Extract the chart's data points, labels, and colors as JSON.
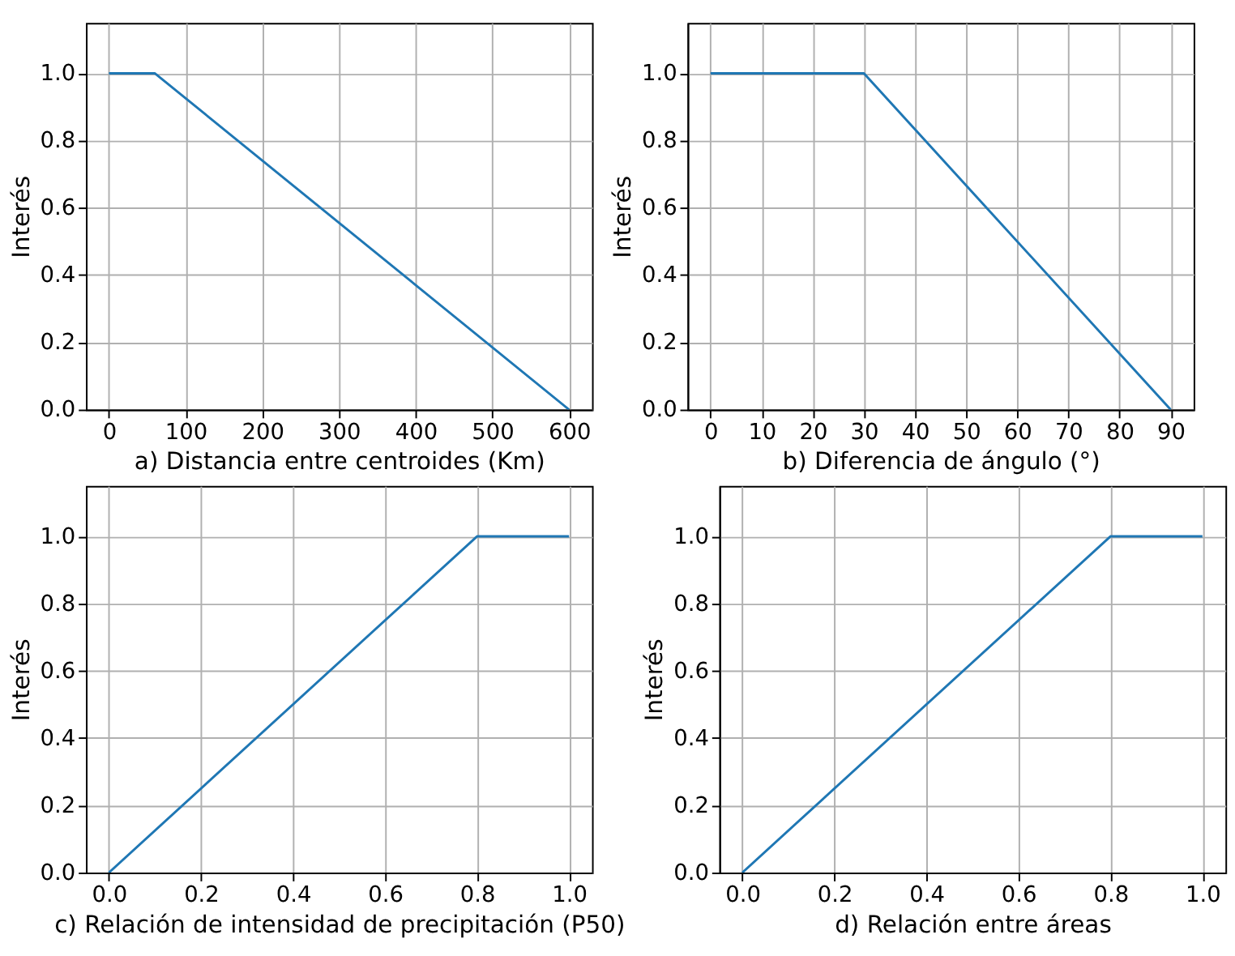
{
  "chart_data": [
    {
      "type": "line",
      "x": [
        0,
        60,
        600
      ],
      "values": [
        1,
        1,
        0
      ],
      "color": "#1f77b4",
      "xlabel": "a) Distancia entre centroides (Km)",
      "ylabel": "Interés",
      "xlim": [
        -30,
        630
      ],
      "ylim": [
        0,
        1.15
      ],
      "xticks": [
        0,
        100,
        200,
        300,
        400,
        500,
        600
      ],
      "yticks": [
        {
          "value": 0,
          "label": "0.0"
        },
        {
          "value": 0.2,
          "label": "0.2"
        },
        {
          "value": 0.4,
          "label": "0.4"
        },
        {
          "value": 0.6,
          "label": "0.6"
        },
        {
          "value": 0.8,
          "label": "0.8"
        },
        {
          "value": 1,
          "label": "1.0"
        }
      ],
      "grid": true
    },
    {
      "type": "line",
      "x": [
        0,
        30,
        90
      ],
      "values": [
        1,
        1,
        0
      ],
      "color": "#1f77b4",
      "xlabel": "b) Diferencia de ángulo (°)",
      "ylabel": "Interés",
      "xlim": [
        -4.5,
        94.5
      ],
      "ylim": [
        0,
        1.15
      ],
      "xticks": [
        0,
        10,
        20,
        30,
        40,
        50,
        60,
        70,
        80,
        90
      ],
      "yticks": [
        {
          "value": 0,
          "label": "0.0"
        },
        {
          "value": 0.2,
          "label": "0.2"
        },
        {
          "value": 0.4,
          "label": "0.4"
        },
        {
          "value": 0.6,
          "label": "0.6"
        },
        {
          "value": 0.8,
          "label": "0.8"
        },
        {
          "value": 1,
          "label": "1.0"
        }
      ],
      "grid": true
    },
    {
      "type": "line",
      "x": [
        0,
        0.8,
        1
      ],
      "values": [
        0,
        1,
        1
      ],
      "color": "#1f77b4",
      "xlabel": "c) Relación de intensidad de precipitación (P50)",
      "ylabel": "Interés",
      "xlim": [
        -0.05,
        1.05
      ],
      "ylim": [
        0,
        1.15
      ],
      "xticks": [
        {
          "value": 0,
          "label": "0.0"
        },
        {
          "value": 0.2,
          "label": "0.2"
        },
        {
          "value": 0.4,
          "label": "0.4"
        },
        {
          "value": 0.6,
          "label": "0.6"
        },
        {
          "value": 0.8,
          "label": "0.8"
        },
        {
          "value": 1,
          "label": "1.0"
        }
      ],
      "yticks": [
        {
          "value": 0,
          "label": "0.0"
        },
        {
          "value": 0.2,
          "label": "0.2"
        },
        {
          "value": 0.4,
          "label": "0.4"
        },
        {
          "value": 0.6,
          "label": "0.6"
        },
        {
          "value": 0.8,
          "label": "0.8"
        },
        {
          "value": 1,
          "label": "1.0"
        }
      ],
      "grid": true
    },
    {
      "type": "line",
      "x": [
        0,
        0.8,
        1
      ],
      "values": [
        0,
        1,
        1
      ],
      "color": "#1f77b4",
      "xlabel": "d) Relación entre áreas",
      "ylabel": "Interés",
      "xlim": [
        -0.05,
        1.05
      ],
      "ylim": [
        0,
        1.15
      ],
      "xticks": [
        {
          "value": 0,
          "label": "0.0"
        },
        {
          "value": 0.2,
          "label": "0.2"
        },
        {
          "value": 0.4,
          "label": "0.4"
        },
        {
          "value": 0.6,
          "label": "0.6"
        },
        {
          "value": 0.8,
          "label": "0.8"
        },
        {
          "value": 1,
          "label": "1.0"
        }
      ],
      "yticks": [
        {
          "value": 0,
          "label": "0.0"
        },
        {
          "value": 0.2,
          "label": "0.2"
        },
        {
          "value": 0.4,
          "label": "0.4"
        },
        {
          "value": 0.6,
          "label": "0.6"
        },
        {
          "value": 0.8,
          "label": "0.8"
        },
        {
          "value": 1,
          "label": "1.0"
        }
      ],
      "grid": true
    }
  ]
}
